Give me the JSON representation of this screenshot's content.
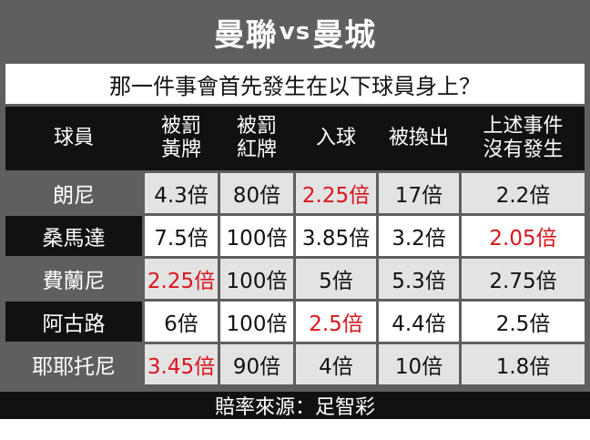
{
  "title": {
    "left": "曼聯",
    "vs": "vs",
    "right": "曼城"
  },
  "question": "那一件事會首先發生在以下球員身上？",
  "headers": [
    [
      "球員"
    ],
    [
      "被罰",
      "黃牌"
    ],
    [
      "被罰",
      "紅牌"
    ],
    [
      "入球"
    ],
    [
      "被換出"
    ],
    [
      "上述事件",
      "沒有發生"
    ]
  ],
  "rows": [
    {
      "name": "朗尼",
      "values": [
        "4.3倍",
        "80倍",
        "2.25倍",
        "17倍",
        "2.2倍"
      ],
      "highlight": [
        false,
        false,
        true,
        false,
        false
      ]
    },
    {
      "name": "桑馬達",
      "values": [
        "7.5倍",
        "100倍",
        "3.85倍",
        "3.2倍",
        "2.05倍"
      ],
      "highlight": [
        false,
        false,
        false,
        false,
        true
      ]
    },
    {
      "name": "費蘭尼",
      "values": [
        "2.25倍",
        "100倍",
        "5倍",
        "5.3倍",
        "2.75倍"
      ],
      "highlight": [
        true,
        false,
        false,
        false,
        false
      ]
    },
    {
      "name": "阿古路",
      "values": [
        "6倍",
        "100倍",
        "2.5倍",
        "4.4倍",
        "2.5倍"
      ],
      "highlight": [
        false,
        false,
        true,
        false,
        false
      ]
    },
    {
      "name": "耶耶托尼",
      "values": [
        "3.45倍",
        "90倍",
        "4倍",
        "10倍",
        "1.8倍"
      ],
      "highlight": [
        true,
        false,
        false,
        false,
        false
      ]
    }
  ],
  "footer": "賠率來源：足智彩",
  "colors": {
    "highlight": "#d9161c",
    "header_bg": "#111111",
    "frame": "#5f5f5f"
  }
}
